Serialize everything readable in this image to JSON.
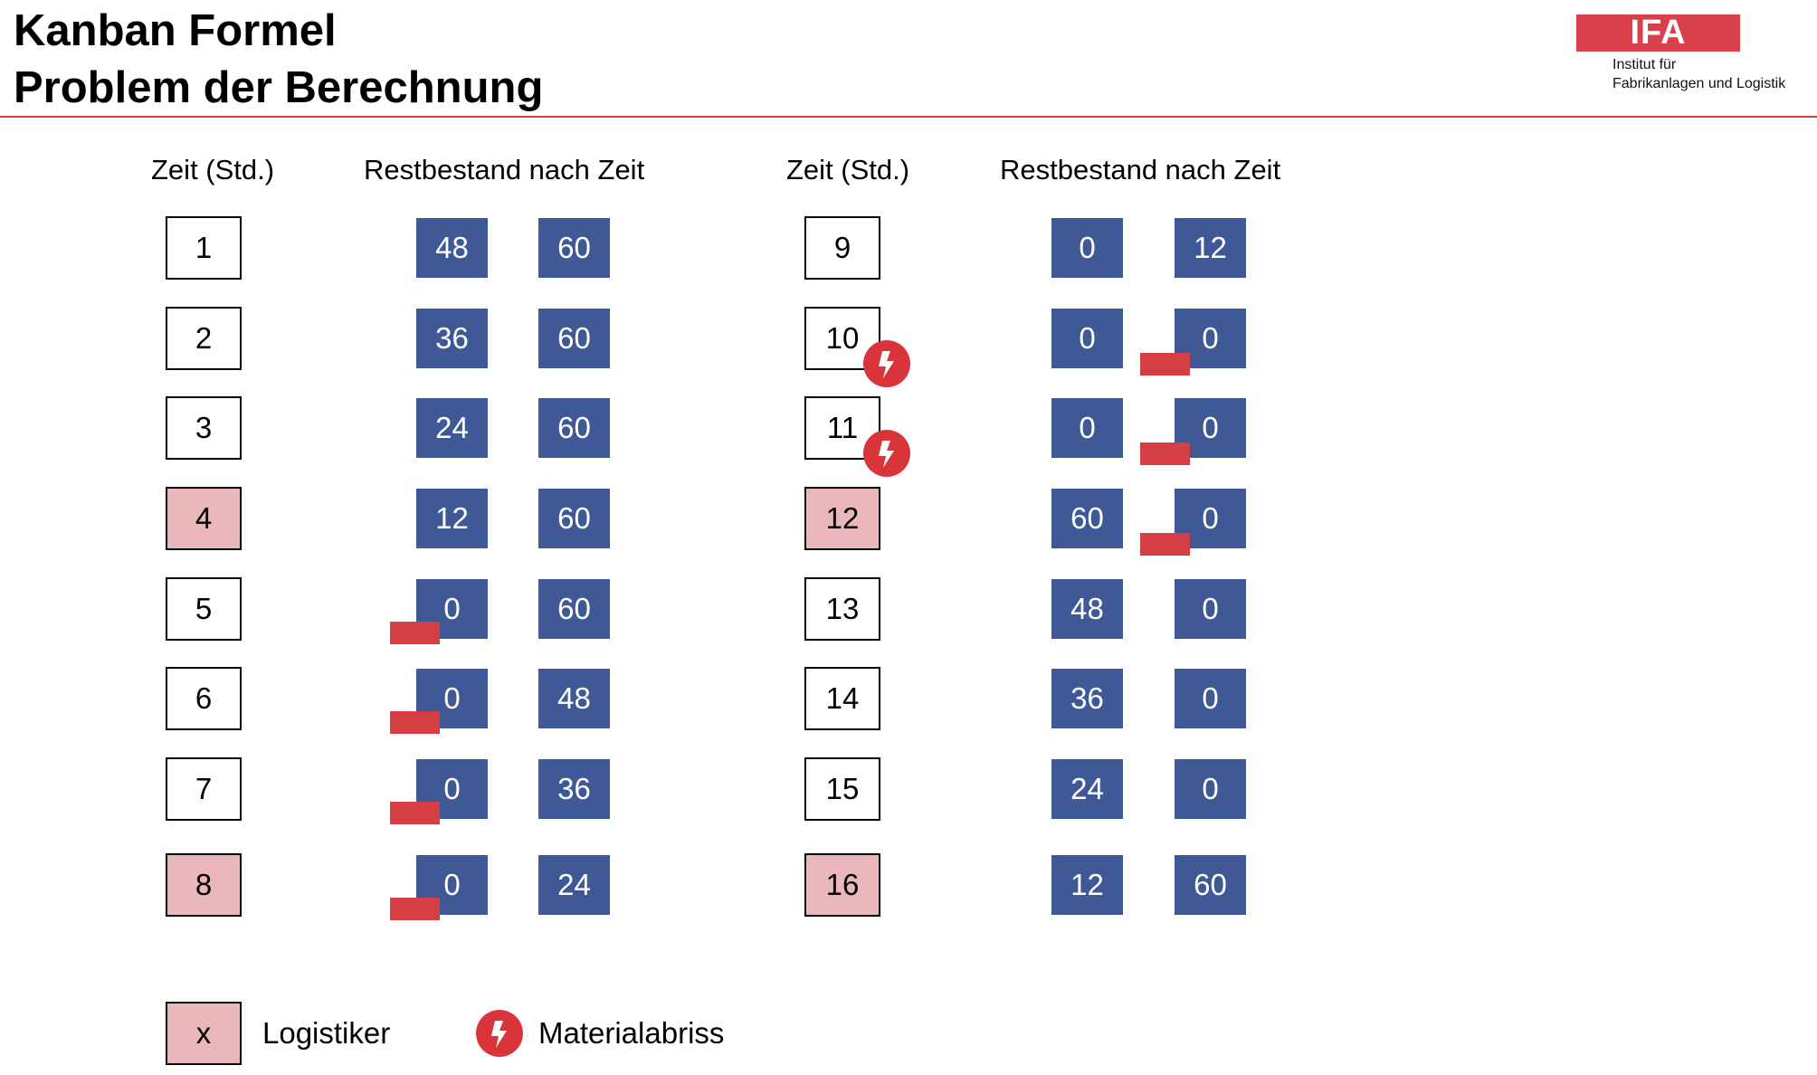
{
  "header": {
    "title": "Kanban Formel",
    "subtitle": "Problem der Berechnung"
  },
  "logo": {
    "mark": "IFA",
    "line1": "Institut für",
    "line2": "Fabrikanlagen und Logistik",
    "color": "#d9404a"
  },
  "columns": {
    "zeit_label": "Zeit (Std.)",
    "rest_label": "Restbestand nach Zeit"
  },
  "colors": {
    "stock": "#3f5896",
    "logistiker": "#eab7ba",
    "deficit": "#d33f42",
    "alarm": "#d9343a"
  },
  "left_rows": [
    {
      "zeit": "1",
      "a": "48",
      "b": "60",
      "logistiker": false,
      "deficit_a": false,
      "deficit_b": false,
      "abriss": false
    },
    {
      "zeit": "2",
      "a": "36",
      "b": "60",
      "logistiker": false,
      "deficit_a": false,
      "deficit_b": false,
      "abriss": false
    },
    {
      "zeit": "3",
      "a": "24",
      "b": "60",
      "logistiker": false,
      "deficit_a": false,
      "deficit_b": false,
      "abriss": false
    },
    {
      "zeit": "4",
      "a": "12",
      "b": "60",
      "logistiker": true,
      "deficit_a": false,
      "deficit_b": false,
      "abriss": false
    },
    {
      "zeit": "5",
      "a": "0",
      "b": "60",
      "logistiker": false,
      "deficit_a": true,
      "deficit_b": false,
      "abriss": false
    },
    {
      "zeit": "6",
      "a": "0",
      "b": "48",
      "logistiker": false,
      "deficit_a": true,
      "deficit_b": false,
      "abriss": false
    },
    {
      "zeit": "7",
      "a": "0",
      "b": "36",
      "logistiker": false,
      "deficit_a": true,
      "deficit_b": false,
      "abriss": false
    },
    {
      "zeit": "8",
      "a": "0",
      "b": "24",
      "logistiker": true,
      "deficit_a": true,
      "deficit_b": false,
      "abriss": false
    }
  ],
  "right_rows": [
    {
      "zeit": "9",
      "a": "0",
      "b": "12",
      "logistiker": false,
      "deficit_a": false,
      "deficit_b": false,
      "abriss": false
    },
    {
      "zeit": "10",
      "a": "0",
      "b": "0",
      "logistiker": false,
      "deficit_a": false,
      "deficit_b": true,
      "abriss": true
    },
    {
      "zeit": "11",
      "a": "0",
      "b": "0",
      "logistiker": false,
      "deficit_a": false,
      "deficit_b": true,
      "abriss": true
    },
    {
      "zeit": "12",
      "a": "60",
      "b": "0",
      "logistiker": true,
      "deficit_a": false,
      "deficit_b": true,
      "abriss": false
    },
    {
      "zeit": "13",
      "a": "48",
      "b": "0",
      "logistiker": false,
      "deficit_a": false,
      "deficit_b": false,
      "abriss": false
    },
    {
      "zeit": "14",
      "a": "36",
      "b": "0",
      "logistiker": false,
      "deficit_a": false,
      "deficit_b": false,
      "abriss": false
    },
    {
      "zeit": "15",
      "a": "24",
      "b": "0",
      "logistiker": false,
      "deficit_a": false,
      "deficit_b": false,
      "abriss": false
    },
    {
      "zeit": "16",
      "a": "12",
      "b": "60",
      "logistiker": true,
      "deficit_a": false,
      "deficit_b": false,
      "abriss": false
    }
  ],
  "legend": {
    "box_symbol": "x",
    "logistiker_label": "Logistiker",
    "abriss_label": "Materialabriss",
    "abriss_icon": "lightning-icon"
  }
}
